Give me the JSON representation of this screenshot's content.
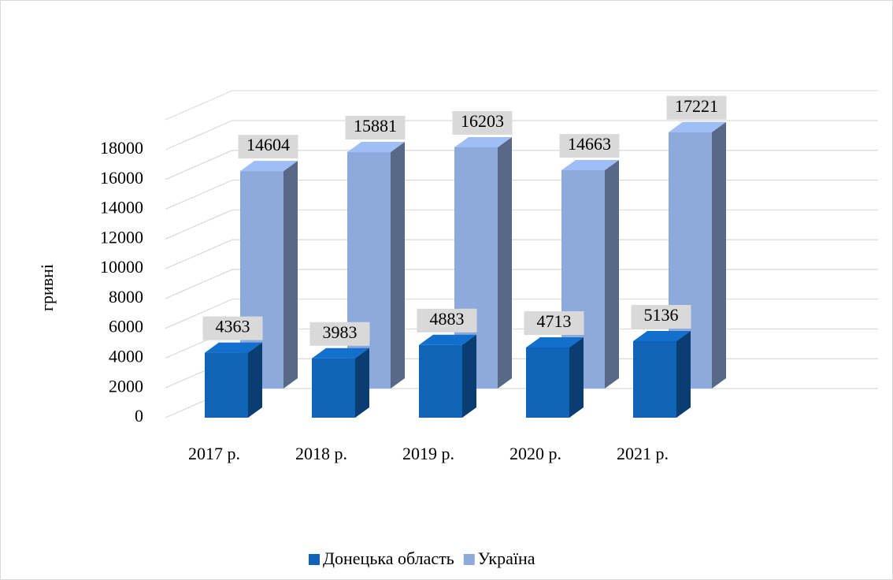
{
  "chart_data": {
    "type": "bar3d",
    "y_label": "гривні",
    "categories": [
      "2017 р.",
      "2018 р.",
      "2019 р.",
      "2020 р.",
      "2021 р."
    ],
    "series": [
      {
        "name": "Донецька область",
        "color": "#1063b6",
        "values": [
          4363,
          3983,
          4883,
          4713,
          5136
        ]
      },
      {
        "name": "Україна",
        "color": "#8eaadc",
        "values": [
          14604,
          15881,
          16203,
          14663,
          17221
        ]
      }
    ],
    "ylim": [
      0,
      18000
    ],
    "yticks": [
      0,
      2000,
      4000,
      6000,
      8000,
      10000,
      12000,
      14000,
      16000,
      18000
    ],
    "grid": true,
    "legend": "bottom"
  }
}
